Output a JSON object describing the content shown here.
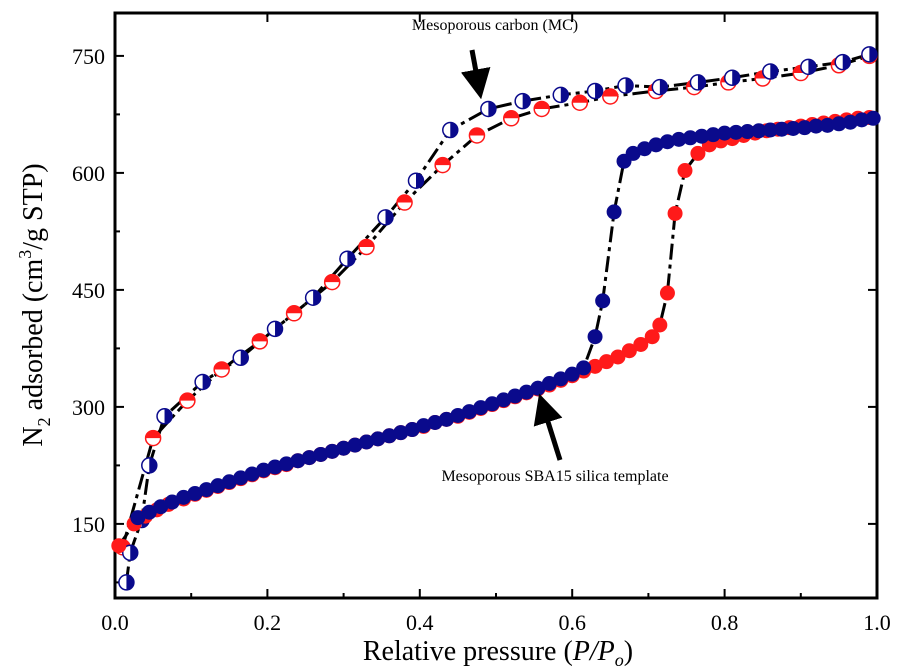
{
  "chart_data": {
    "type": "scatter",
    "xlabel": "Relative pressure (P/Po)",
    "xlabel_parts": {
      "main": "Relative pressure (",
      "italic": "P/P",
      "sub": "o",
      "close": ")"
    },
    "ylabel": "N2 adsorbed (cm3/g STP)",
    "ylabel_parts": {
      "n": "N",
      "n_sub": "2",
      "mid": " adsorbed (cm",
      "sup": "3",
      "tail": "/g STP)"
    },
    "xlim": [
      0.0,
      1.0
    ],
    "ylim": [
      55,
      805
    ],
    "x_ticks": [
      0.0,
      0.2,
      0.4,
      0.6,
      0.8,
      1.0
    ],
    "x_tick_labels": [
      "0.0",
      "0.2",
      "0.4",
      "0.6",
      "0.8",
      "1.0"
    ],
    "y_ticks": [
      150,
      300,
      450,
      600,
      750
    ],
    "y_tick_labels": [
      "150",
      "300",
      "450",
      "600",
      "750"
    ],
    "grid": false,
    "colors": {
      "adsorption": "#ff1a1a",
      "desorption": "#0a0a8c",
      "line": "#000000"
    },
    "annotations": [
      {
        "text": "Mesoporous carbon (MC)",
        "x": 0.48,
        "y": 686
      },
      {
        "text": "Mesoporous SBA15  silica template",
        "x": 0.57,
        "y": 326
      }
    ],
    "series": [
      {
        "material": "MC",
        "branch": "adsorption",
        "points": [
          [
            0.01,
            120
          ],
          [
            0.05,
            260
          ],
          [
            0.095,
            308
          ],
          [
            0.14,
            348
          ],
          [
            0.19,
            384
          ],
          [
            0.235,
            420
          ],
          [
            0.285,
            460
          ],
          [
            0.33,
            505
          ],
          [
            0.38,
            562
          ],
          [
            0.43,
            610
          ],
          [
            0.475,
            648
          ],
          [
            0.52,
            670
          ],
          [
            0.56,
            682
          ],
          [
            0.61,
            690
          ],
          [
            0.65,
            698
          ],
          [
            0.71,
            705
          ],
          [
            0.76,
            710
          ],
          [
            0.805,
            716
          ],
          [
            0.85,
            721
          ],
          [
            0.9,
            728
          ],
          [
            0.95,
            738
          ],
          [
            0.99,
            750
          ]
        ]
      },
      {
        "material": "MC",
        "branch": "desorption",
        "points": [
          [
            0.015,
            75
          ],
          [
            0.02,
            113
          ],
          [
            0.035,
            155
          ],
          [
            0.045,
            225
          ],
          [
            0.065,
            288
          ],
          [
            0.115,
            332
          ],
          [
            0.165,
            363
          ],
          [
            0.21,
            400
          ],
          [
            0.26,
            440
          ],
          [
            0.305,
            490
          ],
          [
            0.355,
            543
          ],
          [
            0.395,
            590
          ],
          [
            0.44,
            655
          ],
          [
            0.49,
            682
          ],
          [
            0.535,
            692
          ],
          [
            0.585,
            700
          ],
          [
            0.63,
            705
          ],
          [
            0.67,
            712
          ],
          [
            0.715,
            710
          ],
          [
            0.765,
            716
          ],
          [
            0.81,
            722
          ],
          [
            0.86,
            730
          ],
          [
            0.91,
            736
          ],
          [
            0.955,
            742
          ],
          [
            0.99,
            752
          ]
        ]
      },
      {
        "material": "SBA15",
        "branch": "adsorption",
        "points": [
          [
            0.005,
            122
          ],
          [
            0.025,
            150
          ],
          [
            0.04,
            160
          ],
          [
            0.055,
            168
          ],
          [
            0.07,
            175
          ],
          [
            0.09,
            182
          ],
          [
            0.105,
            188
          ],
          [
            0.12,
            193
          ],
          [
            0.135,
            198
          ],
          [
            0.15,
            203
          ],
          [
            0.165,
            208
          ],
          [
            0.18,
            213
          ],
          [
            0.195,
            218
          ],
          [
            0.21,
            222
          ],
          [
            0.225,
            226
          ],
          [
            0.24,
            231
          ],
          [
            0.255,
            235
          ],
          [
            0.27,
            239
          ],
          [
            0.285,
            243
          ],
          [
            0.3,
            247
          ],
          [
            0.315,
            251
          ],
          [
            0.33,
            255
          ],
          [
            0.345,
            259
          ],
          [
            0.36,
            263
          ],
          [
            0.375,
            267
          ],
          [
            0.39,
            271
          ],
          [
            0.405,
            275
          ],
          [
            0.42,
            280
          ],
          [
            0.435,
            284
          ],
          [
            0.45,
            288
          ],
          [
            0.465,
            293
          ],
          [
            0.48,
            298
          ],
          [
            0.495,
            303
          ],
          [
            0.51,
            308
          ],
          [
            0.525,
            313
          ],
          [
            0.54,
            318
          ],
          [
            0.555,
            323
          ],
          [
            0.57,
            328
          ],
          [
            0.585,
            334
          ],
          [
            0.6,
            340
          ],
          [
            0.615,
            346
          ],
          [
            0.63,
            352
          ],
          [
            0.645,
            358
          ],
          [
            0.66,
            364
          ],
          [
            0.675,
            372
          ],
          [
            0.69,
            380
          ],
          [
            0.705,
            390
          ],
          [
            0.715,
            405
          ],
          [
            0.725,
            446
          ],
          [
            0.735,
            548
          ],
          [
            0.748,
            603
          ],
          [
            0.765,
            625
          ],
          [
            0.78,
            636
          ],
          [
            0.795,
            641
          ],
          [
            0.81,
            644
          ],
          [
            0.825,
            648
          ],
          [
            0.84,
            651
          ],
          [
            0.855,
            654
          ],
          [
            0.87,
            656
          ],
          [
            0.885,
            658
          ],
          [
            0.9,
            660
          ],
          [
            0.915,
            662
          ],
          [
            0.93,
            664
          ],
          [
            0.945,
            666
          ],
          [
            0.96,
            668
          ],
          [
            0.975,
            670
          ],
          [
            0.99,
            671
          ]
        ]
      },
      {
        "material": "SBA15",
        "branch": "desorption",
        "points": [
          [
            0.03,
            158
          ],
          [
            0.045,
            165
          ],
          [
            0.06,
            172
          ],
          [
            0.075,
            178
          ],
          [
            0.09,
            184
          ],
          [
            0.105,
            189
          ],
          [
            0.12,
            194
          ],
          [
            0.135,
            199
          ],
          [
            0.15,
            204
          ],
          [
            0.165,
            209
          ],
          [
            0.18,
            214
          ],
          [
            0.195,
            219
          ],
          [
            0.21,
            223
          ],
          [
            0.225,
            227
          ],
          [
            0.24,
            231
          ],
          [
            0.255,
            235
          ],
          [
            0.27,
            239
          ],
          [
            0.285,
            243
          ],
          [
            0.3,
            247
          ],
          [
            0.315,
            251
          ],
          [
            0.33,
            255
          ],
          [
            0.345,
            259
          ],
          [
            0.36,
            263
          ],
          [
            0.375,
            267
          ],
          [
            0.39,
            271
          ],
          [
            0.405,
            276
          ],
          [
            0.42,
            280
          ],
          [
            0.435,
            284
          ],
          [
            0.45,
            289
          ],
          [
            0.465,
            294
          ],
          [
            0.48,
            299
          ],
          [
            0.495,
            304
          ],
          [
            0.51,
            309
          ],
          [
            0.525,
            314
          ],
          [
            0.54,
            319
          ],
          [
            0.555,
            324
          ],
          [
            0.57,
            330
          ],
          [
            0.585,
            336
          ],
          [
            0.6,
            342
          ],
          [
            0.615,
            350
          ],
          [
            0.63,
            390
          ],
          [
            0.64,
            436
          ],
          [
            0.655,
            550
          ],
          [
            0.668,
            615
          ],
          [
            0.68,
            625
          ],
          [
            0.695,
            631
          ],
          [
            0.71,
            636
          ],
          [
            0.725,
            640
          ],
          [
            0.74,
            643
          ],
          [
            0.755,
            645
          ],
          [
            0.77,
            647
          ],
          [
            0.785,
            649
          ],
          [
            0.8,
            651
          ],
          [
            0.815,
            652
          ],
          [
            0.83,
            653
          ],
          [
            0.845,
            654
          ],
          [
            0.86,
            655
          ],
          [
            0.875,
            656
          ],
          [
            0.89,
            657
          ],
          [
            0.905,
            658
          ],
          [
            0.92,
            660
          ],
          [
            0.935,
            661
          ],
          [
            0.95,
            663
          ],
          [
            0.965,
            665
          ],
          [
            0.98,
            668
          ],
          [
            0.995,
            670
          ]
        ]
      }
    ]
  }
}
